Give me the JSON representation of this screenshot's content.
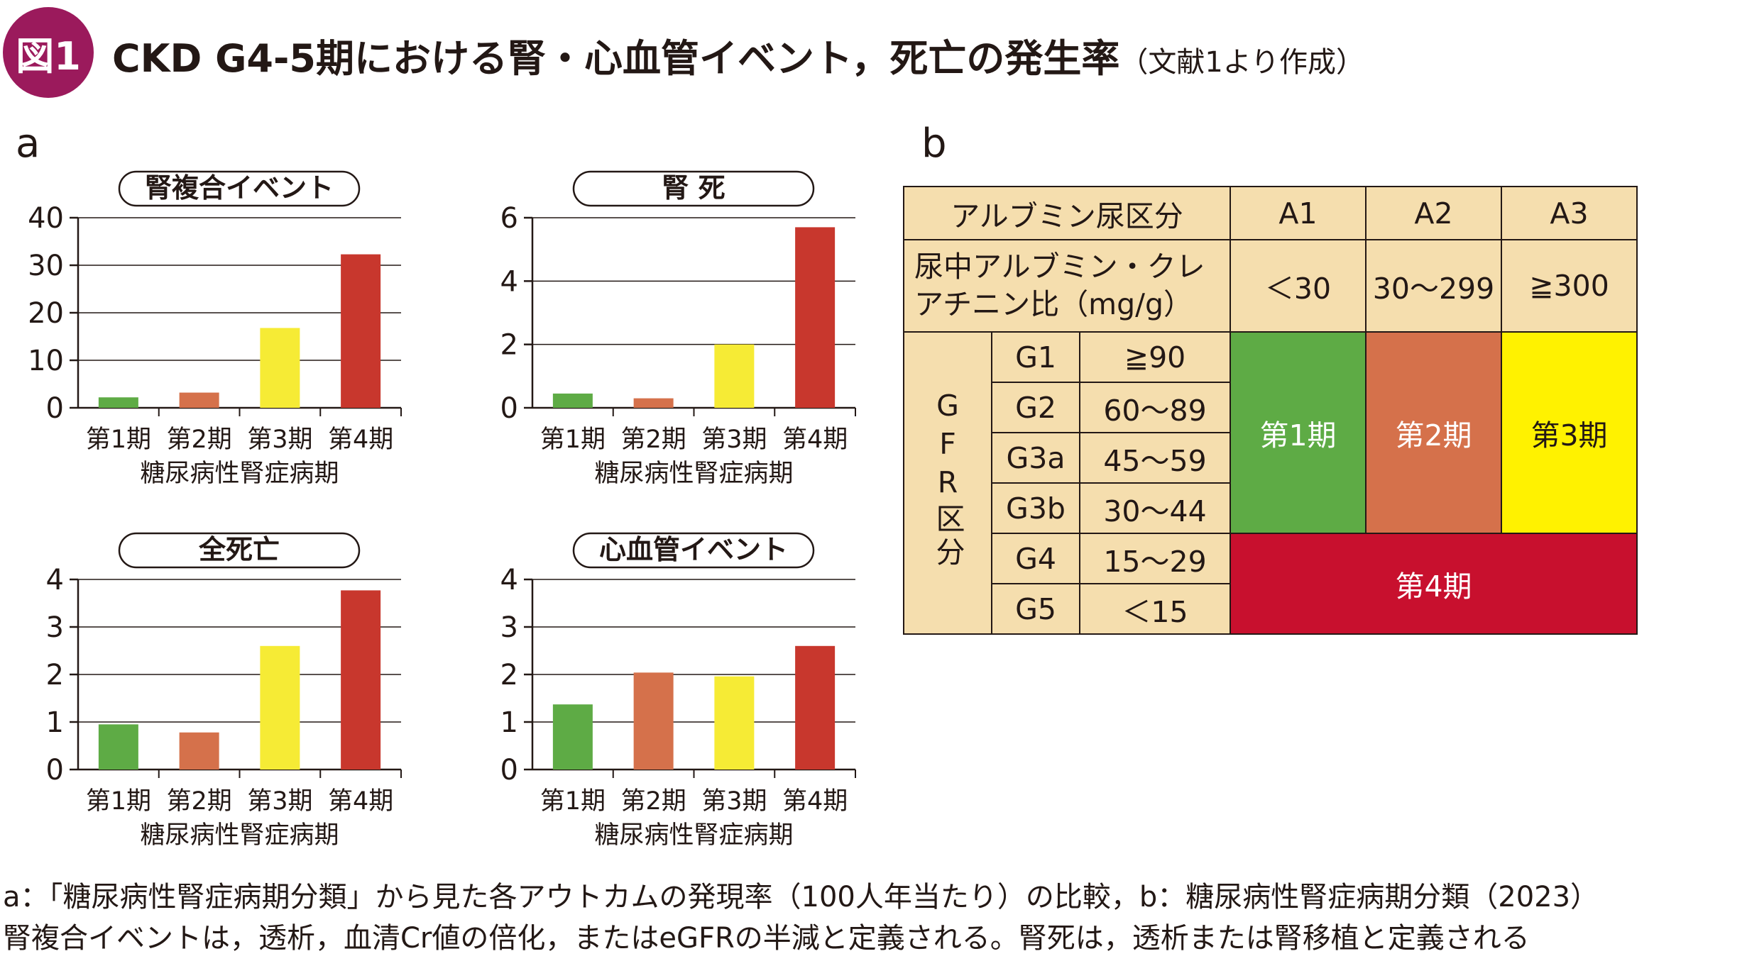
{
  "figure": {
    "badge": "図1",
    "title": "CKD G4-5期における腎・心血管イベント，死亡の発生率",
    "source": "（文献1より作成）"
  },
  "panel_a_label": "a",
  "panel_b_label": "b",
  "colors": {
    "stage1": "#5eab45",
    "stage2": "#d5714b",
    "stage3": "#f6eb35",
    "stage4": "#c8372d"
  },
  "chart_data": [
    {
      "type": "bar",
      "title": "腎複合イベント",
      "xlabel": "糖尿病性腎症病期",
      "ylabel": "",
      "categories": [
        "第1期",
        "第2期",
        "第3期",
        "第4期"
      ],
      "values": [
        2.2,
        3.2,
        16.8,
        32.3
      ],
      "ylim": [
        0,
        40
      ],
      "yticks": [
        0,
        10,
        20,
        30,
        40
      ],
      "grid": true
    },
    {
      "type": "bar",
      "title": "腎 死",
      "xlabel": "糖尿病性腎症病期",
      "ylabel": "",
      "categories": [
        "第1期",
        "第2期",
        "第3期",
        "第4期"
      ],
      "values": [
        0.45,
        0.3,
        2.0,
        5.7
      ],
      "ylim": [
        0,
        6
      ],
      "yticks": [
        0,
        2,
        4,
        6
      ],
      "grid": true
    },
    {
      "type": "bar",
      "title": "全死亡",
      "xlabel": "糖尿病性腎症病期",
      "ylabel": "",
      "categories": [
        "第1期",
        "第2期",
        "第3期",
        "第4期"
      ],
      "values": [
        0.95,
        0.78,
        2.6,
        3.77
      ],
      "ylim": [
        0,
        4
      ],
      "yticks": [
        0,
        1,
        2,
        3,
        4
      ],
      "grid": true
    },
    {
      "type": "bar",
      "title": "心血管イベント",
      "xlabel": "糖尿病性腎症病期",
      "ylabel": "",
      "categories": [
        "第1期",
        "第2期",
        "第3期",
        "第4期"
      ],
      "values": [
        1.37,
        2.04,
        1.96,
        2.6
      ],
      "ylim": [
        0,
        4
      ],
      "yticks": [
        0,
        1,
        2,
        3,
        4
      ],
      "grid": true
    }
  ],
  "table": {
    "header1": [
      "アルブミン尿区分",
      "A1",
      "A2",
      "A3"
    ],
    "header2_label": "尿中アルブミン・クレアチニン比（mg/g）",
    "header2_values": [
      "＜30",
      "30～299",
      "≧300"
    ],
    "gfr_label": "GFR区分",
    "rows": [
      {
        "grade": "G1",
        "range": "≧90"
      },
      {
        "grade": "G2",
        "range": "60～89"
      },
      {
        "grade": "G3a",
        "range": "45～59"
      },
      {
        "grade": "G3b",
        "range": "30～44"
      },
      {
        "grade": "G4",
        "range": "15～29"
      },
      {
        "grade": "G5",
        "range": "＜15"
      }
    ],
    "stage1": "第1期",
    "stage2": "第2期",
    "stage3": "第3期",
    "stage4": "第4期"
  },
  "caption": {
    "line1": "a：「糖尿病性腎症病期分類」から見た各アウトカムの発現率（100人年当たり）の比較，b：糖尿病性腎症病期分類（2023）",
    "line2": "腎複合イベントは，透析，血清Cr値の倍化，またはeGFRの半減と定義される。腎死は，透析または腎移植と定義される"
  }
}
